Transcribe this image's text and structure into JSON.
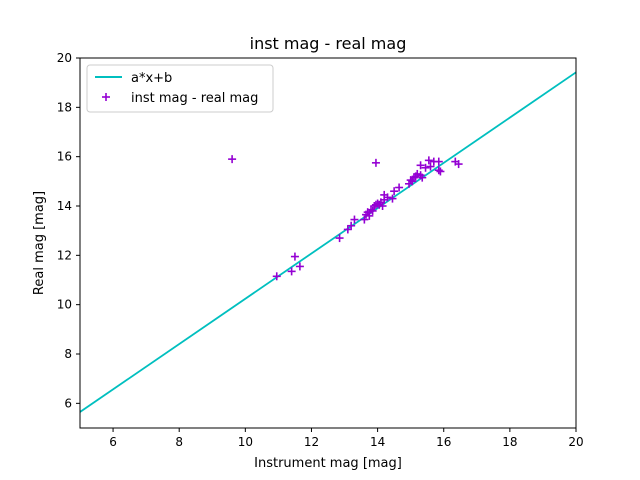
{
  "chart_data": {
    "type": "scatter",
    "title": "inst mag - real mag",
    "xlabel": "Instrument mag [mag]",
    "ylabel": "Real mag [mag]",
    "xlim": [
      5,
      20
    ],
    "ylim": [
      5,
      20
    ],
    "xticks": [
      6,
      8,
      10,
      12,
      14,
      16,
      18,
      20
    ],
    "yticks": [
      6,
      8,
      10,
      12,
      14,
      16,
      18,
      20
    ],
    "grid": false,
    "legend_position": "top-left",
    "colors": {
      "fit": "#00bfbf",
      "points": "#9400d3"
    },
    "fit_line": {
      "name": "a*x+b",
      "x": [
        5,
        20
      ],
      "y": [
        5.65,
        19.42
      ]
    },
    "series": [
      {
        "name": "inst mag - real mag",
        "marker": "plus",
        "points": [
          [
            9.6,
            15.9
          ],
          [
            10.95,
            11.15
          ],
          [
            11.4,
            11.35
          ],
          [
            11.5,
            11.95
          ],
          [
            11.65,
            11.55
          ],
          [
            12.85,
            12.7
          ],
          [
            13.1,
            13.05
          ],
          [
            13.2,
            13.2
          ],
          [
            13.3,
            13.45
          ],
          [
            13.6,
            13.45
          ],
          [
            13.65,
            13.65
          ],
          [
            13.7,
            13.75
          ],
          [
            13.75,
            13.6
          ],
          [
            13.8,
            13.85
          ],
          [
            13.85,
            13.8
          ],
          [
            13.9,
            14.0
          ],
          [
            13.95,
            14.05
          ],
          [
            13.95,
            15.75
          ],
          [
            14.0,
            14.1
          ],
          [
            14.05,
            14.05
          ],
          [
            14.1,
            14.15
          ],
          [
            14.15,
            14.0
          ],
          [
            14.2,
            14.25
          ],
          [
            14.2,
            14.45
          ],
          [
            14.3,
            14.35
          ],
          [
            14.45,
            14.3
          ],
          [
            14.5,
            14.6
          ],
          [
            14.65,
            14.75
          ],
          [
            14.95,
            14.9
          ],
          [
            15.0,
            15.05
          ],
          [
            15.05,
            15.0
          ],
          [
            15.1,
            15.15
          ],
          [
            15.15,
            15.2
          ],
          [
            15.2,
            15.3
          ],
          [
            15.3,
            15.25
          ],
          [
            15.3,
            15.65
          ],
          [
            15.35,
            15.15
          ],
          [
            15.45,
            15.55
          ],
          [
            15.55,
            15.85
          ],
          [
            15.6,
            15.6
          ],
          [
            15.7,
            15.8
          ],
          [
            15.85,
            15.8
          ],
          [
            15.85,
            15.45
          ],
          [
            15.9,
            15.4
          ],
          [
            16.35,
            15.8
          ],
          [
            16.45,
            15.7
          ]
        ]
      }
    ]
  }
}
